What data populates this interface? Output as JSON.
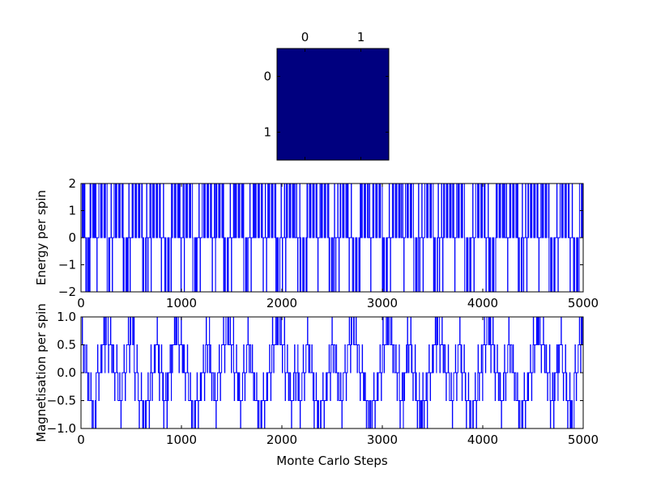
{
  "colors": {
    "background": "#ffffff",
    "line": "#0000ff",
    "heatmap_cell": "#00007f",
    "axes": "#000000"
  },
  "chart_data": [
    {
      "type": "heatmap",
      "title": "",
      "x_tick_labels": [
        "0",
        "1"
      ],
      "y_tick_labels": [
        "0",
        "1"
      ],
      "x_ticks_position": "top",
      "values": [
        [
          -1,
          -1
        ],
        [
          -1,
          -1
        ]
      ],
      "colormap": "jet"
    },
    {
      "type": "line",
      "title": "",
      "xlabel": "",
      "ylabel": "Energy per spin",
      "xlim": [
        0,
        5000
      ],
      "ylim": [
        -2,
        2
      ],
      "x_ticks": [
        0,
        1000,
        2000,
        3000,
        4000,
        5000
      ],
      "y_ticks": [
        -2,
        -1,
        0,
        1,
        2
      ],
      "y_tick_labels": [
        "−2",
        "−1",
        "0",
        "1",
        "2"
      ],
      "grid": false,
      "series": [
        {
          "x_start": 0,
          "x_end": 5000,
          "levels": [
            -2,
            0,
            2
          ],
          "runs": [
            [
              0,
              30,
              2
            ],
            [
              30,
              55,
              0
            ],
            [
              55,
              90,
              -2
            ],
            [
              90,
              140,
              2
            ],
            [
              140,
              175,
              0
            ],
            [
              175,
              260,
              2
            ],
            [
              260,
              290,
              -2
            ],
            [
              290,
              330,
              0
            ],
            [
              330,
              420,
              2
            ],
            [
              420,
              470,
              -2
            ],
            [
              470,
              520,
              0
            ],
            [
              520,
              610,
              2
            ],
            [
              610,
              650,
              -2
            ],
            [
              650,
              700,
              0
            ],
            [
              700,
              790,
              2
            ],
            [
              790,
              830,
              0
            ],
            [
              830,
              900,
              -2
            ],
            [
              900,
              980,
              2
            ],
            [
              980,
              1030,
              0
            ],
            [
              1030,
              1110,
              2
            ],
            [
              1110,
              1150,
              -2
            ],
            [
              1150,
              1210,
              0
            ],
            [
              1210,
              1300,
              2
            ],
            [
              1300,
              1340,
              0
            ],
            [
              1340,
              1420,
              2
            ],
            [
              1420,
              1470,
              -2
            ],
            [
              1470,
              1530,
              0
            ],
            [
              1530,
              1620,
              2
            ],
            [
              1620,
              1660,
              -2
            ],
            [
              1660,
              1720,
              0
            ],
            [
              1720,
              1810,
              2
            ],
            [
              1810,
              1860,
              0
            ],
            [
              1860,
              1940,
              2
            ],
            [
              1940,
              1980,
              -2
            ],
            [
              1980,
              2040,
              0
            ],
            [
              2040,
              2130,
              2
            ],
            [
              2130,
              2180,
              0
            ],
            [
              2180,
              2250,
              -2
            ],
            [
              2250,
              2340,
              2
            ],
            [
              2340,
              2380,
              0
            ],
            [
              2380,
              2470,
              2
            ],
            [
              2470,
              2520,
              -2
            ],
            [
              2520,
              2580,
              0
            ],
            [
              2580,
              2660,
              2
            ],
            [
              2660,
              2700,
              0
            ],
            [
              2700,
              2780,
              -2
            ],
            [
              2780,
              2860,
              2
            ],
            [
              2860,
              2910,
              0
            ],
            [
              2910,
              3000,
              2
            ],
            [
              3000,
              3050,
              -2
            ],
            [
              3050,
              3100,
              0
            ],
            [
              3100,
              3190,
              2
            ],
            [
              3190,
              3230,
              0
            ],
            [
              3230,
              3310,
              2
            ],
            [
              3310,
              3360,
              -2
            ],
            [
              3360,
              3420,
              0
            ],
            [
              3420,
              3510,
              2
            ],
            [
              3510,
              3550,
              -2
            ],
            [
              3550,
              3610,
              0
            ],
            [
              3610,
              3700,
              2
            ],
            [
              3700,
              3740,
              0
            ],
            [
              3740,
              3820,
              2
            ],
            [
              3820,
              3870,
              -2
            ],
            [
              3870,
              3930,
              0
            ],
            [
              3930,
              4020,
              2
            ],
            [
              4020,
              4060,
              0
            ],
            [
              4060,
              4130,
              -2
            ],
            [
              4130,
              4220,
              2
            ],
            [
              4220,
              4270,
              0
            ],
            [
              4270,
              4350,
              2
            ],
            [
              4350,
              4390,
              -2
            ],
            [
              4390,
              4450,
              0
            ],
            [
              4450,
              4540,
              2
            ],
            [
              4540,
              4580,
              0
            ],
            [
              4580,
              4660,
              2
            ],
            [
              4660,
              4710,
              -2
            ],
            [
              4710,
              4770,
              0
            ],
            [
              4770,
              4860,
              2
            ],
            [
              4860,
              4900,
              0
            ],
            [
              4900,
              4960,
              -2
            ],
            [
              4960,
              5000,
              2
            ]
          ]
        }
      ]
    },
    {
      "type": "line",
      "title": "",
      "xlabel": "Monte Carlo Steps",
      "ylabel": "Magnetisation per spin",
      "xlim": [
        0,
        5000
      ],
      "ylim": [
        -1.0,
        1.0
      ],
      "x_ticks": [
        0,
        1000,
        2000,
        3000,
        4000,
        5000
      ],
      "y_ticks": [
        -1.0,
        -0.5,
        0.0,
        0.5,
        1.0
      ],
      "y_tick_labels": [
        "−1.0",
        "−0.5",
        "0.0",
        "0.5",
        "1.0"
      ],
      "grid": false,
      "series": [
        {
          "x_start": 0,
          "x_end": 5000,
          "levels": [
            -1.0,
            -0.5,
            0.0,
            0.5,
            1.0
          ],
          "runs": [
            [
              0,
              40,
              0.5
            ],
            [
              40,
              80,
              0.0
            ],
            [
              80,
              120,
              -0.5
            ],
            [
              120,
              150,
              -1.0
            ],
            [
              150,
              200,
              0.0
            ],
            [
              200,
              240,
              0.5
            ],
            [
              240,
              270,
              1.0
            ],
            [
              270,
              320,
              0.5
            ],
            [
              320,
              370,
              0.0
            ],
            [
              370,
              410,
              -0.5
            ],
            [
              410,
              450,
              0.0
            ],
            [
              450,
              490,
              0.5
            ],
            [
              490,
              530,
              1.0
            ],
            [
              530,
              570,
              0.0
            ],
            [
              570,
              610,
              -0.5
            ],
            [
              610,
              640,
              -1.0
            ],
            [
              640,
              690,
              -0.5
            ],
            [
              690,
              740,
              0.0
            ],
            [
              740,
              780,
              0.5
            ],
            [
              780,
              820,
              0.0
            ],
            [
              820,
              860,
              -0.5
            ],
            [
              860,
              900,
              0.0
            ],
            [
              900,
              940,
              0.5
            ],
            [
              940,
              970,
              1.0
            ],
            [
              970,
              1020,
              0.5
            ],
            [
              1020,
              1070,
              0.0
            ],
            [
              1070,
              1110,
              -0.5
            ],
            [
              1110,
              1140,
              -1.0
            ],
            [
              1140,
              1190,
              -0.5
            ],
            [
              1190,
              1240,
              0.0
            ],
            [
              1240,
              1280,
              0.5
            ],
            [
              1280,
              1320,
              0.0
            ],
            [
              1320,
              1360,
              -0.5
            ],
            [
              1360,
              1400,
              0.0
            ],
            [
              1400,
              1440,
              0.5
            ],
            [
              1440,
              1470,
              1.0
            ],
            [
              1470,
              1520,
              0.5
            ],
            [
              1520,
              1570,
              0.0
            ],
            [
              1570,
              1610,
              -0.5
            ],
            [
              1610,
              1650,
              0.0
            ],
            [
              1650,
              1690,
              0.5
            ],
            [
              1690,
              1730,
              0.0
            ],
            [
              1730,
              1770,
              -0.5
            ],
            [
              1770,
              1800,
              -1.0
            ],
            [
              1800,
              1850,
              -0.5
            ],
            [
              1850,
              1900,
              0.0
            ],
            [
              1900,
              1940,
              0.5
            ],
            [
              1940,
              1980,
              1.0
            ],
            [
              1980,
              2030,
              0.5
            ],
            [
              2030,
              2080,
              0.0
            ],
            [
              2080,
              2120,
              -0.5
            ],
            [
              2120,
              2160,
              0.0
            ],
            [
              2160,
              2200,
              -0.5
            ],
            [
              2200,
              2240,
              0.0
            ],
            [
              2240,
              2280,
              0.5
            ],
            [
              2280,
              2320,
              0.0
            ],
            [
              2320,
              2360,
              -0.5
            ],
            [
              2360,
              2390,
              -1.0
            ],
            [
              2390,
              2440,
              -0.5
            ],
            [
              2440,
              2490,
              0.0
            ],
            [
              2490,
              2530,
              0.5
            ],
            [
              2530,
              2570,
              0.0
            ],
            [
              2570,
              2610,
              -0.5
            ],
            [
              2610,
              2650,
              0.0
            ],
            [
              2650,
              2690,
              0.5
            ],
            [
              2690,
              2720,
              1.0
            ],
            [
              2720,
              2770,
              0.5
            ],
            [
              2770,
              2820,
              0.0
            ],
            [
              2820,
              2860,
              -0.5
            ],
            [
              2860,
              2900,
              -1.0
            ],
            [
              2900,
              2950,
              -0.5
            ],
            [
              2950,
              3000,
              0.0
            ],
            [
              3000,
              3040,
              0.5
            ],
            [
              3040,
              3080,
              1.0
            ],
            [
              3080,
              3120,
              0.5
            ],
            [
              3120,
              3170,
              0.0
            ],
            [
              3170,
              3210,
              -0.5
            ],
            [
              3210,
              3250,
              0.0
            ],
            [
              3250,
              3290,
              0.5
            ],
            [
              3290,
              3330,
              0.0
            ],
            [
              3330,
              3370,
              -0.5
            ],
            [
              3370,
              3400,
              -1.0
            ],
            [
              3400,
              3450,
              -0.5
            ],
            [
              3450,
              3500,
              0.0
            ],
            [
              3500,
              3540,
              0.5
            ],
            [
              3540,
              3570,
              1.0
            ],
            [
              3570,
              3620,
              0.5
            ],
            [
              3620,
              3670,
              0.0
            ],
            [
              3670,
              3710,
              -0.5
            ],
            [
              3710,
              3750,
              0.0
            ],
            [
              3750,
              3790,
              0.5
            ],
            [
              3790,
              3830,
              0.0
            ],
            [
              3830,
              3870,
              -0.5
            ],
            [
              3870,
              3900,
              -1.0
            ],
            [
              3900,
              3950,
              -0.5
            ],
            [
              3950,
              4000,
              0.0
            ],
            [
              4000,
              4040,
              0.5
            ],
            [
              4040,
              4080,
              1.0
            ],
            [
              4080,
              4120,
              0.5
            ],
            [
              4120,
              4170,
              0.0
            ],
            [
              4170,
              4210,
              -0.5
            ],
            [
              4210,
              4250,
              0.0
            ],
            [
              4250,
              4290,
              0.5
            ],
            [
              4290,
              4330,
              0.0
            ],
            [
              4330,
              4370,
              -0.5
            ],
            [
              4370,
              4400,
              -1.0
            ],
            [
              4400,
              4450,
              -0.5
            ],
            [
              4450,
              4500,
              0.0
            ],
            [
              4500,
              4540,
              0.5
            ],
            [
              4540,
              4570,
              1.0
            ],
            [
              4570,
              4620,
              0.5
            ],
            [
              4620,
              4670,
              0.0
            ],
            [
              4670,
              4710,
              -0.5
            ],
            [
              4710,
              4750,
              0.0
            ],
            [
              4750,
              4790,
              0.5
            ],
            [
              4790,
              4830,
              0.0
            ],
            [
              4830,
              4870,
              -0.5
            ],
            [
              4870,
              4910,
              -1.0
            ],
            [
              4910,
              4950,
              0.0
            ],
            [
              4950,
              4980,
              0.5
            ],
            [
              4980,
              5000,
              1.0
            ]
          ]
        }
      ]
    }
  ]
}
